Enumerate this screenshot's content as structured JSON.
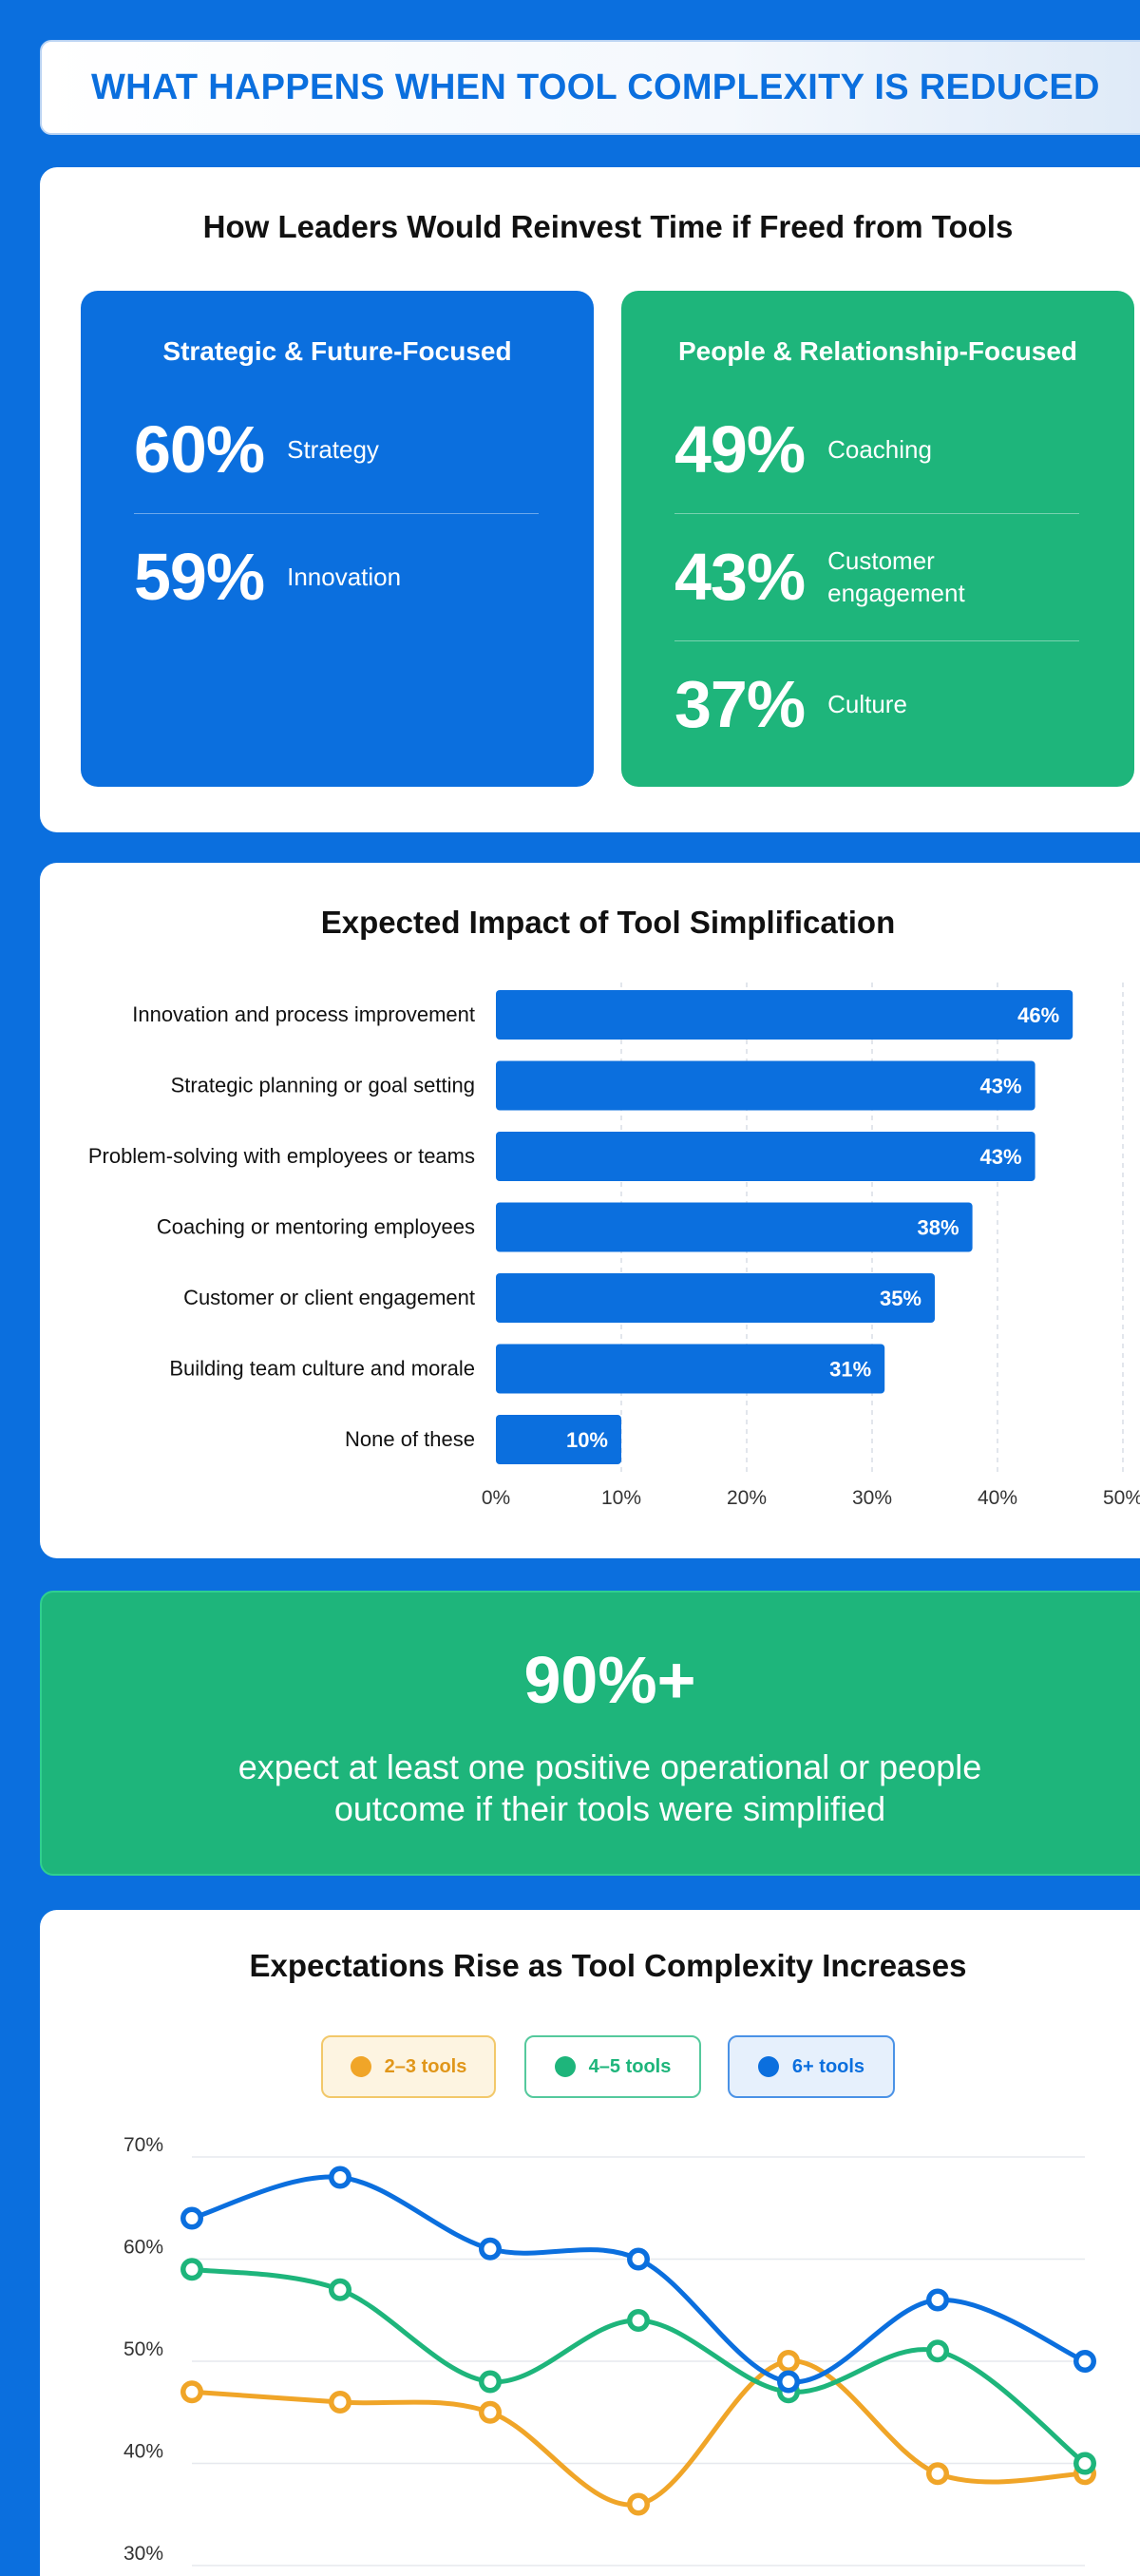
{
  "banner": {
    "title": "WHAT HAPPENS WHEN TOOL COMPLEXITY IS REDUCED"
  },
  "reinvest": {
    "title": "How Leaders Would Reinvest Time if Freed from Tools",
    "strategic": {
      "title": "Strategic & Future-Focused",
      "items": [
        {
          "pct": "60%",
          "label": "Strategy"
        },
        {
          "pct": "59%",
          "label": "Innovation"
        }
      ]
    },
    "people": {
      "title": "People & Relationship-Focused",
      "items": [
        {
          "pct": "49%",
          "label": "Coaching"
        },
        {
          "pct": "43%",
          "label": "Customer engagement"
        },
        {
          "pct": "37%",
          "label": "Culture"
        }
      ]
    },
    "colors": {
      "blue": "#0b6fde",
      "green": "#1eb57b"
    }
  },
  "callout": {
    "stat": "90%+",
    "text": "expect at least one positive operational or people outcome if their tools were simplified"
  },
  "chart_data": [
    {
      "type": "bar",
      "orientation": "horizontal",
      "title": "Expected Impact of Tool Simplification",
      "categories": [
        "Innovation and process improvement",
        "Strategic planning or goal setting",
        "Problem-solving with employees or teams",
        "Coaching or mentoring employees",
        "Customer or client engagement",
        "Building team culture and morale",
        "None of these"
      ],
      "values": [
        46,
        43,
        43,
        38,
        35,
        31,
        10
      ],
      "value_labels": [
        "46%",
        "43%",
        "43%",
        "38%",
        "35%",
        "31%",
        "10%"
      ],
      "xlim": [
        0,
        50
      ],
      "xticks": [
        "0%",
        "10%",
        "20%",
        "30%",
        "40%",
        "50%"
      ],
      "grid": "vertical-dashed",
      "color": "#0b6fde"
    },
    {
      "type": "line",
      "title": "Expectations Rise as Tool Complexity Increases",
      "legend": "top-center",
      "ylim": [
        30,
        70
      ],
      "yticks": [
        "30%",
        "40%",
        "50%",
        "60%",
        "70%"
      ],
      "x": [
        1,
        2,
        3,
        4,
        5,
        6,
        7
      ],
      "series": [
        {
          "name": "2–3 tools",
          "color": "#f0a528",
          "values": [
            47,
            46,
            45,
            36,
            50,
            39,
            39
          ]
        },
        {
          "name": "4–5 tools",
          "color": "#1eb57b",
          "values": [
            59,
            57,
            48,
            54,
            47,
            51,
            40
          ]
        },
        {
          "name": "6+ tools",
          "color": "#0b6fde",
          "values": [
            64,
            68,
            61,
            60,
            48,
            56,
            50
          ]
        }
      ]
    }
  ]
}
